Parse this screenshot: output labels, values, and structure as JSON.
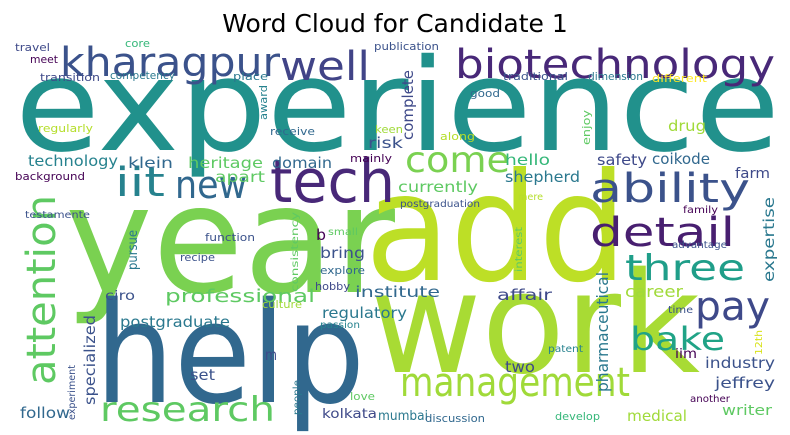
{
  "title": "Word Cloud for Candidate 1",
  "words": [
    {
      "text": "experience",
      "color": "#21918c"
    },
    {
      "text": "year",
      "color": "#7ad151"
    },
    {
      "text": "add",
      "color": "#bddf26"
    },
    {
      "text": "help",
      "color": "#31688e"
    },
    {
      "text": "work",
      "color": "#a8db34"
    },
    {
      "text": "tech",
      "color": "#482878"
    },
    {
      "text": "kharagpur",
      "color": "#3b528b"
    },
    {
      "text": "well",
      "color": "#414487"
    },
    {
      "text": "biotechnology",
      "color": "#482878"
    },
    {
      "text": "iit",
      "color": "#26828e"
    },
    {
      "text": "new",
      "color": "#31688e"
    },
    {
      "text": "come",
      "color": "#7ad151"
    },
    {
      "text": "ability",
      "color": "#3b528b"
    },
    {
      "text": "detail",
      "color": "#481f70"
    },
    {
      "text": "three",
      "color": "#1f9e89"
    },
    {
      "text": "pay",
      "color": "#3e4989"
    },
    {
      "text": "bake",
      "color": "#20a386"
    },
    {
      "text": "management",
      "color": "#a0da39"
    },
    {
      "text": "research",
      "color": "#5ec962"
    },
    {
      "text": "attention",
      "color": "#5ec962"
    },
    {
      "text": "professional",
      "color": "#5ec962"
    },
    {
      "text": "postgraduate",
      "color": "#2a788e"
    },
    {
      "text": "regulatory",
      "color": "#2a788e"
    },
    {
      "text": "institute",
      "color": "#31688e"
    },
    {
      "text": "affair",
      "color": "#3e4989"
    },
    {
      "text": "career",
      "color": "#a0da39"
    },
    {
      "text": "pharmaceutical",
      "color": "#2a788e"
    },
    {
      "text": "industry",
      "color": "#3b528b"
    },
    {
      "text": "jeffrey",
      "color": "#3b528b"
    },
    {
      "text": "writer",
      "color": "#5ec962"
    },
    {
      "text": "medical",
      "color": "#a0da39"
    },
    {
      "text": "iim",
      "color": "#440154"
    },
    {
      "text": "expertise",
      "color": "#2a788e"
    },
    {
      "text": "farm",
      "color": "#3e4989"
    },
    {
      "text": "coikode",
      "color": "#31688e"
    },
    {
      "text": "safety",
      "color": "#3e4989"
    },
    {
      "text": "drug",
      "color": "#a0da39"
    },
    {
      "text": "hello",
      "color": "#35b779"
    },
    {
      "text": "shepherd",
      "color": "#2a788e"
    },
    {
      "text": "currently",
      "color": "#5ec962"
    },
    {
      "text": "complete",
      "color": "#3e4989"
    },
    {
      "text": "risk",
      "color": "#3b528b"
    },
    {
      "text": "mainly",
      "color": "#440154"
    },
    {
      "text": "domain",
      "color": "#31688e"
    },
    {
      "text": "apart",
      "color": "#5ec962"
    },
    {
      "text": "heritage",
      "color": "#5ec962"
    },
    {
      "text": "klein",
      "color": "#31688e"
    },
    {
      "text": "technology",
      "color": "#26828e"
    },
    {
      "text": "background",
      "color": "#440154"
    },
    {
      "text": "testamente",
      "color": "#3b528b"
    },
    {
      "text": "regularly",
      "color": "#b5de2b"
    },
    {
      "text": "receive",
      "color": "#31688e"
    },
    {
      "text": "keen",
      "color": "#a0da39"
    },
    {
      "text": "along",
      "color": "#b5de2b"
    },
    {
      "text": "good",
      "color": "#31688e"
    },
    {
      "text": "award",
      "color": "#26828e"
    },
    {
      "text": "enjoy",
      "color": "#5ec962"
    },
    {
      "text": "traditional",
      "color": "#3b528b"
    },
    {
      "text": "dimension",
      "color": "#2a788e"
    },
    {
      "text": "different",
      "color": "#fde725"
    },
    {
      "text": "publication",
      "color": "#3b528b"
    },
    {
      "text": "core",
      "color": "#35b779"
    },
    {
      "text": "travel",
      "color": "#3e4989"
    },
    {
      "text": "meet",
      "color": "#440154"
    },
    {
      "text": "transition",
      "color": "#3e4989"
    },
    {
      "text": "competency",
      "color": "#2a788e"
    },
    {
      "text": "place",
      "color": "#2a788e"
    },
    {
      "text": "b",
      "color": "#440154"
    },
    {
      "text": "small",
      "color": "#5ec962"
    },
    {
      "text": "bring",
      "color": "#3b528b"
    },
    {
      "text": "explore",
      "color": "#31688e"
    },
    {
      "text": "hobby",
      "color": "#3e4989"
    },
    {
      "text": "passion",
      "color": "#26828e"
    },
    {
      "text": "consistency",
      "color": "#5ec962"
    },
    {
      "text": "function",
      "color": "#3b528b"
    },
    {
      "text": "recipe",
      "color": "#3b528b"
    },
    {
      "text": "culture",
      "color": "#a0da39"
    },
    {
      "text": "pursue",
      "color": "#2a788e"
    },
    {
      "text": "ciro",
      "color": "#3b528b"
    },
    {
      "text": "specialized",
      "color": "#3b528b"
    },
    {
      "text": "experiment",
      "color": "#3b528b"
    },
    {
      "text": "follow",
      "color": "#31688e"
    },
    {
      "text": "set",
      "color": "#3b528b"
    },
    {
      "text": "m",
      "color": "#3e4989"
    },
    {
      "text": "people",
      "color": "#2a788e"
    },
    {
      "text": "love",
      "color": "#5ec962"
    },
    {
      "text": "kolkata",
      "color": "#3e4989"
    },
    {
      "text": "mumbai",
      "color": "#2a788e"
    },
    {
      "text": "discussion",
      "color": "#31688e"
    },
    {
      "text": "develop",
      "color": "#35b779"
    },
    {
      "text": "two",
      "color": "#3e4989"
    },
    {
      "text": "patent",
      "color": "#26828e"
    },
    {
      "text": "time",
      "color": "#3b528b"
    },
    {
      "text": "12th",
      "color": "#d8e219"
    },
    {
      "text": "another",
      "color": "#440154"
    },
    {
      "text": "family",
      "color": "#440154"
    },
    {
      "text": "advantage",
      "color": "#3b528b"
    },
    {
      "text": "interest",
      "color": "#5ec962"
    },
    {
      "text": "mere",
      "color": "#b5de2b"
    },
    {
      "text": "postgraduation",
      "color": "#3b528b"
    }
  ]
}
